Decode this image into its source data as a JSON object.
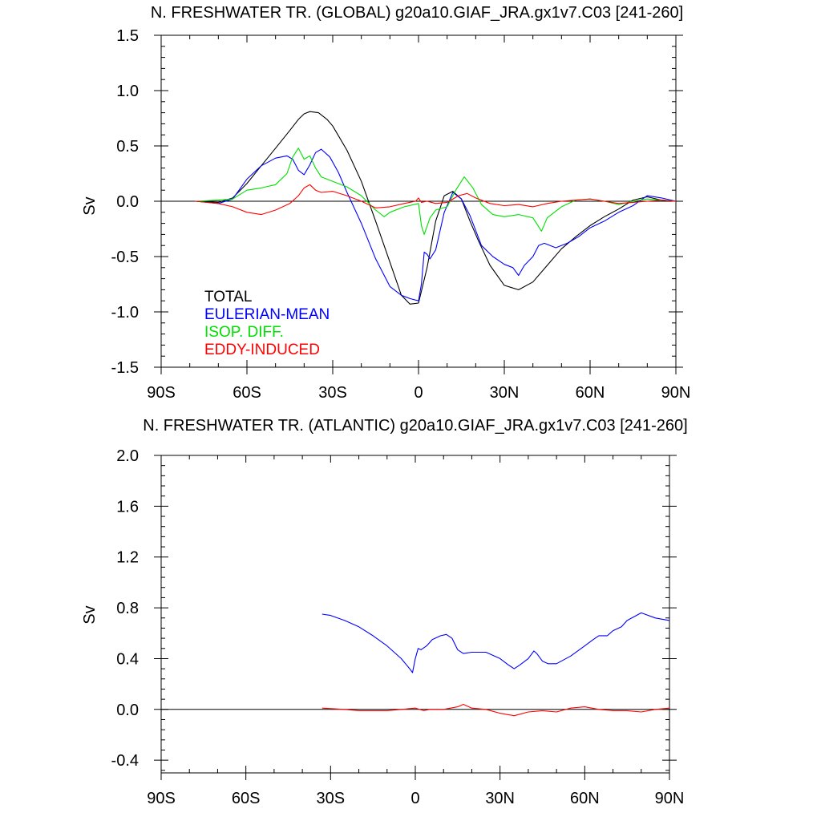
{
  "chart_data": [
    {
      "type": "line",
      "title": "N. FRESHWATER TR. (GLOBAL) g20a10.GIAF_JRA.gx1v7.C03 [241-260]",
      "xlabel": "",
      "ylabel": "Sv",
      "xlim": [
        -90,
        90
      ],
      "ylim": [
        -1.5,
        1.5
      ],
      "x_ticks": [
        -90,
        -60,
        -30,
        0,
        30,
        60,
        90
      ],
      "x_tick_labels": [
        "90S",
        "60S",
        "30S",
        "0",
        "30N",
        "60N",
        "90N"
      ],
      "y_ticks": [
        -1.5,
        -1.0,
        -0.5,
        0.0,
        0.5,
        1.0,
        1.5
      ],
      "y_tick_labels": [
        "-1.5",
        "-1.0",
        "-0.5",
        "0.0",
        "0.5",
        "1.0",
        "1.5"
      ],
      "grid": false,
      "zero_line": true,
      "legend_position": "lower-left",
      "series": [
        {
          "name": "TOTAL",
          "color": "#000000",
          "x": [
            -78,
            -70,
            -65,
            -60,
            -55,
            -50,
            -45,
            -42,
            -40,
            -38,
            -35,
            -32,
            -30,
            -25,
            -20,
            -15,
            -10,
            -6,
            -3,
            0,
            3,
            6,
            9,
            12,
            15,
            18,
            21,
            25,
            30,
            35,
            40,
            45,
            50,
            55,
            60,
            65,
            70,
            75,
            80,
            85,
            90
          ],
          "y": [
            0,
            -0.01,
            0.03,
            0.16,
            0.32,
            0.48,
            0.64,
            0.74,
            0.79,
            0.81,
            0.8,
            0.74,
            0.68,
            0.46,
            0.18,
            -0.18,
            -0.55,
            -0.85,
            -0.93,
            -0.92,
            -0.6,
            -0.18,
            0.05,
            0.09,
            0.02,
            -0.18,
            -0.36,
            -0.58,
            -0.76,
            -0.8,
            -0.73,
            -0.58,
            -0.43,
            -0.32,
            -0.22,
            -0.14,
            -0.07,
            0.01,
            0.04,
            0.01,
            0
          ]
        },
        {
          "name": "EULERIAN-MEAN",
          "color": "#0000ff",
          "x": [
            -78,
            -70,
            -65,
            -60,
            -55,
            -50,
            -46,
            -44,
            -42,
            -40,
            -38,
            -36,
            -34,
            -31,
            -28,
            -25,
            -20,
            -15,
            -10,
            -6,
            -3,
            0,
            1,
            2,
            3,
            4,
            6,
            9,
            12,
            15,
            18,
            22,
            26,
            30,
            33,
            35,
            37,
            40,
            42,
            44,
            48,
            52,
            56,
            60,
            65,
            70,
            75,
            80,
            85,
            90
          ],
          "y": [
            0,
            -0.02,
            0.02,
            0.2,
            0.32,
            0.39,
            0.41,
            0.38,
            0.28,
            0.24,
            0.33,
            0.44,
            0.47,
            0.4,
            0.26,
            0.08,
            -0.2,
            -0.52,
            -0.77,
            -0.85,
            -0.88,
            -0.9,
            -0.75,
            -0.46,
            -0.48,
            -0.52,
            -0.44,
            -0.1,
            0.08,
            0.02,
            -0.13,
            -0.4,
            -0.5,
            -0.57,
            -0.6,
            -0.67,
            -0.58,
            -0.5,
            -0.4,
            -0.38,
            -0.42,
            -0.38,
            -0.32,
            -0.24,
            -0.18,
            -0.1,
            -0.04,
            0.05,
            0.03,
            0
          ]
        },
        {
          "name": "ISOP. DIFF.",
          "color": "#00e000",
          "x": [
            -78,
            -70,
            -65,
            -60,
            -55,
            -50,
            -46,
            -44,
            -42,
            -40,
            -38,
            -36,
            -34,
            -30,
            -25,
            -20,
            -15,
            -12,
            -10,
            -5,
            0,
            1,
            2,
            4,
            6,
            10,
            13,
            16,
            19,
            22,
            26,
            30,
            35,
            40,
            43,
            45,
            50,
            55,
            60,
            65,
            70,
            75,
            80,
            85,
            90
          ],
          "y": [
            0,
            0.01,
            0.02,
            0.1,
            0.12,
            0.15,
            0.25,
            0.4,
            0.48,
            0.38,
            0.41,
            0.3,
            0.22,
            0.18,
            0.13,
            0.05,
            -0.08,
            -0.14,
            -0.1,
            -0.05,
            -0.02,
            -0.22,
            -0.3,
            -0.15,
            -0.08,
            -0.05,
            0.1,
            0.22,
            0.12,
            -0.03,
            -0.12,
            -0.14,
            -0.12,
            -0.15,
            -0.27,
            -0.15,
            -0.05,
            0.01,
            0.02,
            0.0,
            -0.03,
            0.0,
            0.02,
            0.01,
            0
          ]
        },
        {
          "name": "EDDY-INDUCED",
          "color": "#ff0000",
          "x": [
            -78,
            -70,
            -65,
            -60,
            -55,
            -50,
            -45,
            -42,
            -40,
            -38,
            -36,
            -34,
            -30,
            -25,
            -20,
            -15,
            -10,
            -5,
            -1,
            0,
            1,
            3,
            6,
            10,
            14,
            17,
            20,
            25,
            30,
            35,
            40,
            45,
            50,
            55,
            60,
            65,
            70,
            75,
            80,
            85,
            90
          ],
          "y": [
            0,
            -0.02,
            -0.05,
            -0.1,
            -0.12,
            -0.08,
            -0.02,
            0.05,
            0.12,
            0.15,
            0.1,
            0.08,
            0.09,
            0.05,
            0.0,
            -0.06,
            -0.05,
            -0.02,
            0.0,
            0.03,
            -0.01,
            0.0,
            -0.02,
            -0.01,
            0.05,
            0.07,
            0.03,
            -0.02,
            -0.04,
            -0.03,
            -0.05,
            -0.02,
            0.0,
            0.01,
            0.02,
            0.0,
            -0.02,
            -0.01,
            0.0,
            0.01,
            0
          ]
        }
      ]
    },
    {
      "type": "line",
      "title": "N. FRESHWATER TR. (ATLANTIC) g20a10.GIAF_JRA.gx1v7.C03 [241-260]",
      "xlabel": "",
      "ylabel": "Sv",
      "xlim": [
        -90,
        90
      ],
      "ylim": [
        -0.5,
        2.0
      ],
      "x_ticks": [
        -90,
        -60,
        -30,
        0,
        30,
        60,
        90
      ],
      "x_tick_labels": [
        "90S",
        "60S",
        "30S",
        "0",
        "30N",
        "60N",
        "90N"
      ],
      "y_ticks": [
        -0.4,
        0.0,
        0.4,
        0.8,
        1.2,
        1.6,
        2.0
      ],
      "y_tick_labels": [
        "-0.4",
        "0.0",
        "0.4",
        "0.8",
        "1.2",
        "1.6",
        "2.0"
      ],
      "grid": false,
      "zero_line": true,
      "series": [
        {
          "name": "EULERIAN-MEAN",
          "color": "#0000ff",
          "x": [
            -33,
            -30,
            -25,
            -20,
            -15,
            -10,
            -5,
            -2,
            -1,
            0,
            1,
            2,
            4,
            6,
            9,
            11,
            13,
            15,
            17,
            20,
            25,
            30,
            33,
            35,
            37,
            40,
            42,
            43,
            45,
            47,
            50,
            55,
            60,
            63,
            65,
            68,
            70,
            73,
            75,
            80,
            85,
            90
          ],
          "y": [
            0.75,
            0.74,
            0.7,
            0.65,
            0.58,
            0.5,
            0.4,
            0.32,
            0.29,
            0.4,
            0.48,
            0.47,
            0.5,
            0.55,
            0.58,
            0.59,
            0.56,
            0.47,
            0.44,
            0.45,
            0.45,
            0.4,
            0.35,
            0.32,
            0.35,
            0.4,
            0.46,
            0.44,
            0.38,
            0.36,
            0.36,
            0.42,
            0.5,
            0.55,
            0.58,
            0.58,
            0.62,
            0.65,
            0.7,
            0.76,
            0.72,
            0.7
          ]
        },
        {
          "name": "EDDY-INDUCED",
          "color": "#ff0000",
          "x": [
            -33,
            -25,
            -20,
            -15,
            -10,
            -5,
            0,
            3,
            5,
            10,
            15,
            17,
            20,
            25,
            30,
            35,
            40,
            45,
            50,
            55,
            60,
            65,
            70,
            75,
            80,
            85,
            90
          ],
          "y": [
            0.01,
            0.0,
            -0.01,
            -0.01,
            -0.01,
            0.0,
            0.01,
            -0.01,
            0.0,
            0.0,
            0.02,
            0.04,
            0.01,
            0.0,
            -0.03,
            -0.05,
            -0.02,
            -0.01,
            -0.02,
            0.01,
            0.02,
            0.0,
            -0.01,
            -0.01,
            -0.02,
            0.0,
            0.01
          ]
        }
      ]
    }
  ]
}
